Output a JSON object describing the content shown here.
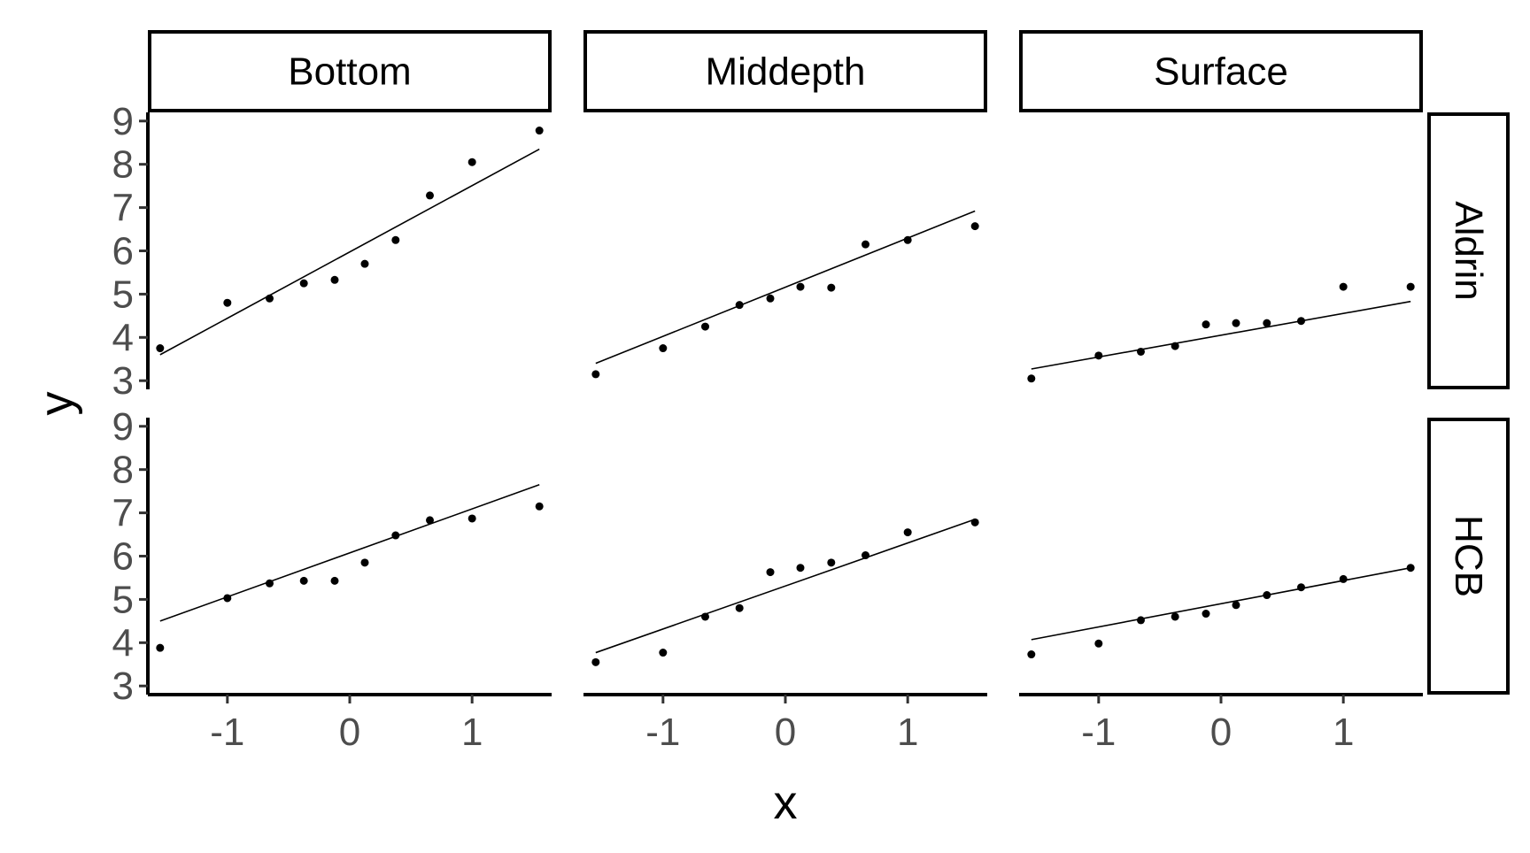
{
  "chart_data": {
    "type": "scatter",
    "xlabel": "x",
    "ylabel": "y",
    "xlim": [
      -1.65,
      1.65
    ],
    "ylim": [
      2.8,
      9.2
    ],
    "x_ticks": [
      -1,
      0,
      1
    ],
    "x_tick_labels": [
      "-1",
      "0",
      "1"
    ],
    "y_ticks": [
      3,
      4,
      5,
      6,
      7,
      8,
      9
    ],
    "y_tick_labels": [
      "3",
      "4",
      "5",
      "6",
      "7",
      "8",
      "9"
    ],
    "columns": [
      "Bottom",
      "Middepth",
      "Surface"
    ],
    "rows": [
      "Aldrin",
      "HCB"
    ],
    "grid": false,
    "series_style": {
      "point_color": "#000000",
      "line_color": "#000000"
    },
    "panels": [
      {
        "row": "Aldrin",
        "col": "Bottom",
        "x": [
          -1.55,
          -1.0,
          -0.655,
          -0.375,
          -0.123,
          0.123,
          0.375,
          0.655,
          1.0,
          1.55
        ],
        "y": [
          3.75,
          4.8,
          4.9,
          5.25,
          5.33,
          5.7,
          6.25,
          7.28,
          8.05,
          8.78
        ],
        "fit": [
          [
            -1.55,
            3.6
          ],
          [
            1.55,
            8.35
          ]
        ]
      },
      {
        "row": "Aldrin",
        "col": "Middepth",
        "x": [
          -1.55,
          -1.0,
          -0.655,
          -0.375,
          -0.123,
          0.123,
          0.375,
          0.655,
          1.0,
          1.55
        ],
        "y": [
          3.15,
          3.75,
          4.25,
          4.75,
          4.9,
          5.17,
          5.15,
          6.15,
          6.25,
          6.57
        ],
        "fit": [
          [
            -1.55,
            3.4
          ],
          [
            1.55,
            6.92
          ]
        ]
      },
      {
        "row": "Aldrin",
        "col": "Surface",
        "x": [
          -1.55,
          -1.0,
          -0.655,
          -0.375,
          -0.123,
          0.123,
          0.375,
          0.655,
          1.0,
          1.55
        ],
        "y": [
          3.05,
          3.58,
          3.67,
          3.8,
          4.3,
          4.33,
          4.33,
          4.38,
          5.17,
          5.17
        ],
        "fit": [
          [
            -1.55,
            3.27
          ],
          [
            1.55,
            4.83
          ]
        ]
      },
      {
        "row": "HCB",
        "col": "Bottom",
        "x": [
          -1.55,
          -1.0,
          -0.655,
          -0.375,
          -0.123,
          0.123,
          0.375,
          0.655,
          1.0,
          1.55
        ],
        "y": [
          3.88,
          5.03,
          5.37,
          5.43,
          5.43,
          5.85,
          6.48,
          6.83,
          6.87,
          7.15
        ],
        "fit": [
          [
            -1.55,
            4.5
          ],
          [
            1.55,
            7.65
          ]
        ]
      },
      {
        "row": "HCB",
        "col": "Middepth",
        "x": [
          -1.55,
          -1.0,
          -0.655,
          -0.375,
          -0.123,
          0.123,
          0.375,
          0.655,
          1.0,
          1.55
        ],
        "y": [
          3.55,
          3.77,
          4.6,
          4.8,
          5.63,
          5.73,
          5.85,
          6.02,
          6.55,
          6.78
        ],
        "fit": [
          [
            -1.55,
            3.77
          ],
          [
            1.55,
            6.85
          ]
        ]
      },
      {
        "row": "HCB",
        "col": "Surface",
        "x": [
          -1.55,
          -1.0,
          -0.655,
          -0.375,
          -0.123,
          0.123,
          0.375,
          0.655,
          1.0,
          1.55
        ],
        "y": [
          3.73,
          3.98,
          4.52,
          4.6,
          4.67,
          4.87,
          5.1,
          5.28,
          5.47,
          5.73
        ],
        "fit": [
          [
            -1.55,
            4.07
          ],
          [
            1.55,
            5.73
          ]
        ]
      }
    ]
  }
}
